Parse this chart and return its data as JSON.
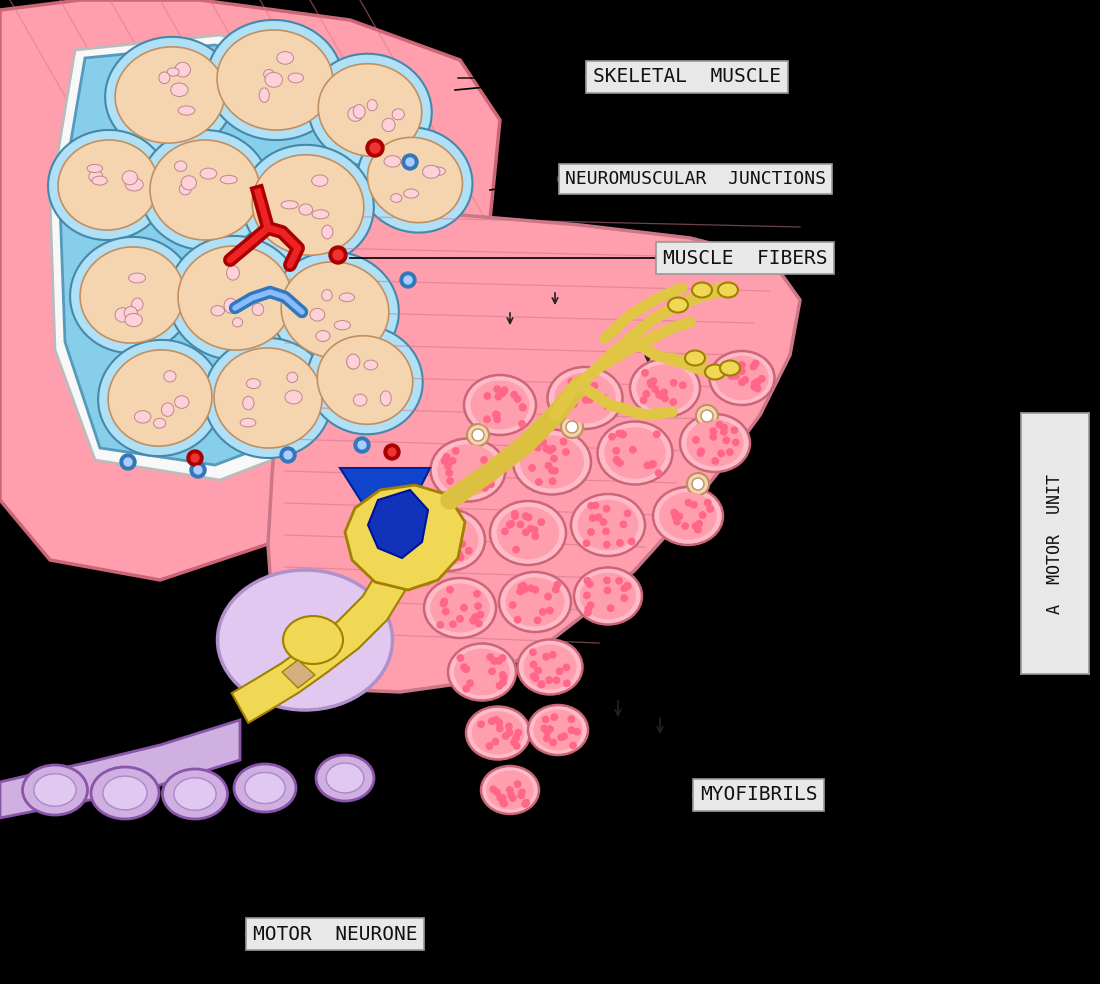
{
  "background_color": "#000000",
  "label_box_color": "#e8e8e8",
  "label_text_color": "#111111",
  "labels": {
    "skeletal_muscle": "SKELETAL  MUSCLE",
    "neuromuscular_junctions": "NEUROMUSCULAR  JUNCTIONS",
    "muscle_fibers": "MUSCLE  FIBERS",
    "myofibrils": "MYOFIBRILS",
    "motor_neurone": "MOTOR  NEURONE",
    "motor_unit": "A  MOTOR  UNIT"
  },
  "colors": {
    "pink_muscle": "#FF9EAD",
    "light_pink": "#FFD0D8",
    "pale_pink": "#FFE8EC",
    "peach": "#F5D5B0",
    "light_peach": "#FAE8CC",
    "cyan_border": "#87CEEB",
    "light_cyan": "#B0E0F5",
    "white_inner": "#F8F8F8",
    "red_vessel": "#CC0000",
    "blue_vessel": "#5599CC",
    "yellow_neuron": "#F0D855",
    "navy_blue": "#1133BB",
    "purple_nerve": "#B090CC",
    "light_purple": "#D0B0E0",
    "lavender": "#E0C8F0",
    "dark_outline": "#111111",
    "dots_pink": "#FF6688",
    "salmon": "#FF8896"
  }
}
